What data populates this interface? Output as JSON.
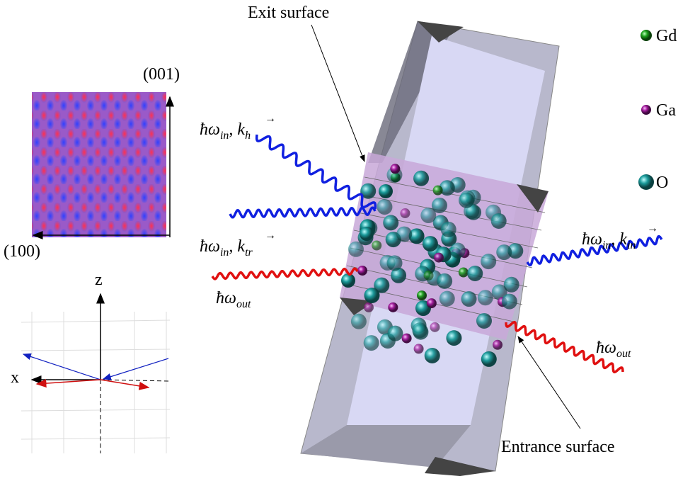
{
  "annotations": {
    "exit": "Exit surface",
    "entrance": "Entrance surface"
  },
  "legend": [
    {
      "label": "Gd",
      "color": "#1aa01a"
    },
    {
      "label": "Ga",
      "color": "#a01a9a"
    },
    {
      "label": "O",
      "color": "#1aa0a0"
    }
  ],
  "lattice": {
    "vertical": "(001)",
    "horizontal": "(100)"
  },
  "axes": {
    "z": "z",
    "x": "x"
  },
  "beams": [
    {
      "symbol": "ħω",
      "sub": "in",
      "vec": "k",
      "vecsub": "h",
      "color": "#1020e0"
    },
    {
      "symbol": "ħω",
      "sub": "in",
      "vec": "k",
      "vecsub": "tr",
      "color": "#1020e0"
    },
    {
      "symbol": "ħω",
      "sub": "out",
      "color": "#e01010"
    },
    {
      "symbol": "ħω",
      "sub": "in",
      "vec": "k",
      "vecsub": "in",
      "color": "#1020e0"
    },
    {
      "symbol": "ħω",
      "sub": "out",
      "color": "#e01010"
    }
  ]
}
